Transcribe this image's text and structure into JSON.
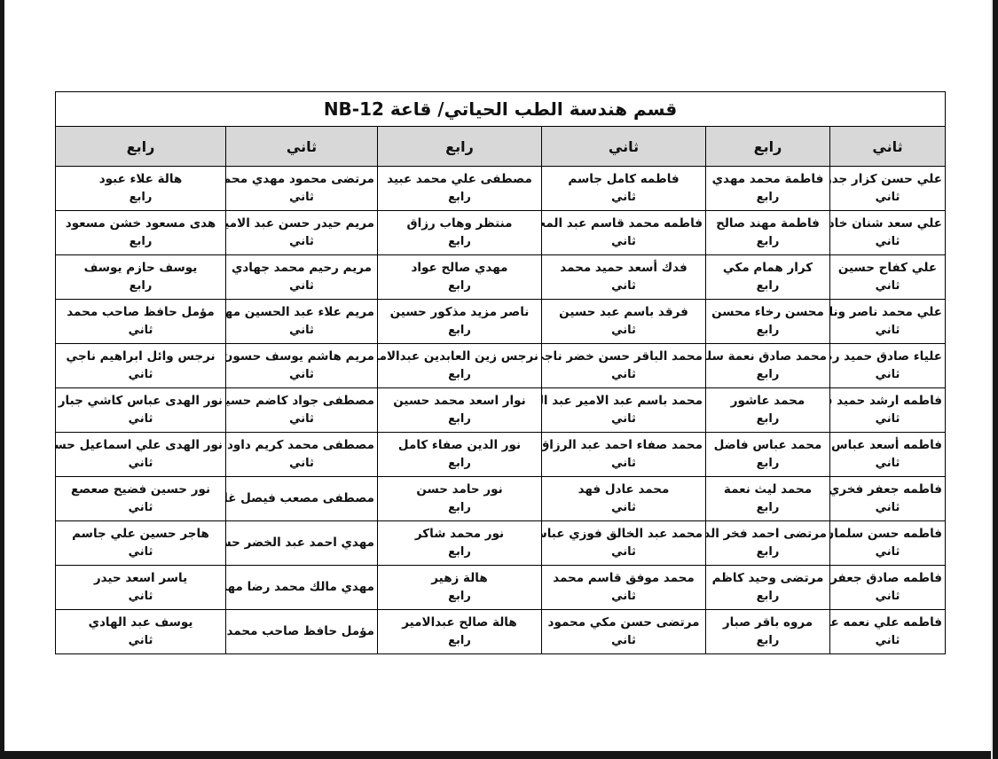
{
  "page": {
    "title": "قسم هندسة الطب الحياتي/ قاعة NB-12"
  },
  "table": {
    "column_headers": [
      "ثاني",
      "رابع",
      "ثاني",
      "رابع",
      "ثاني",
      "رابع"
    ],
    "rows": [
      [
        {
          "name": "علي حسن كزار جدوع",
          "level": "ثاني"
        },
        {
          "name": "فاطمة محمد مهدي",
          "level": "رابع"
        },
        {
          "name": "فاطمه كامل جاسم",
          "level": "ثاني"
        },
        {
          "name": "مصطفى علي محمد عبيد",
          "level": "رابع"
        },
        {
          "name": "مرتضى محمود مهدي محمد",
          "level": "ثاني"
        },
        {
          "name": "هالة علاء عبود",
          "level": "رابع"
        }
      ],
      [
        {
          "name": "علي سعد شنان خادم",
          "level": "ثاني"
        },
        {
          "name": "فاطمة مهند صالح",
          "level": "رابع"
        },
        {
          "name": "فاطمه محمد قاسم عبد المحسن",
          "level": "ثاني"
        },
        {
          "name": "منتظر وهاب رزاق",
          "level": "رابع"
        },
        {
          "name": "مريم حيدر حسن عبد الامير",
          "level": "ثاني"
        },
        {
          "name": "هدى مسعود خشن مسعود",
          "level": "رابع"
        }
      ],
      [
        {
          "name": "علي كفاح حسين",
          "level": "ثاني"
        },
        {
          "name": "كرار همام مكي",
          "level": "رابع"
        },
        {
          "name": "فدك أسعد حميد محمد",
          "level": "ثاني"
        },
        {
          "name": "مهدي صالح عواد",
          "level": "رابع"
        },
        {
          "name": "مريم رحيم محمد جهادي",
          "level": "ثاني"
        },
        {
          "name": "يوسف حازم يوسف",
          "level": "رابع"
        }
      ],
      [
        {
          "name": "علي محمد ناصر ونان",
          "level": "ثاني"
        },
        {
          "name": "محسن رخاء محسن",
          "level": "رابع"
        },
        {
          "name": "فرقد باسم عبد حسين",
          "level": "ثاني"
        },
        {
          "name": "ناصر مزيد مذكور حسين",
          "level": "رابع"
        },
        {
          "name": "مريم علاء عبد الحسين مهدي",
          "level": "ثاني"
        },
        {
          "name": "مؤمل حافظ صاحب محمد",
          "level": "ثاني"
        }
      ],
      [
        {
          "name": "علياء صادق حميد رضا",
          "level": "ثاني"
        },
        {
          "name": "محمد صادق نعمة سلمان",
          "level": "رابع"
        },
        {
          "name": "محمد الباقر حسن خضر ناجي",
          "level": "ثاني"
        },
        {
          "name": "نرجس زين العابدين عبدالامير",
          "level": "رابع"
        },
        {
          "name": "مريم هاشم يوسف حسون",
          "level": "ثاني"
        },
        {
          "name": "نرجس وائل ابراهيم ناجي",
          "level": "ثاني"
        }
      ],
      [
        {
          "name": "فاطمه ارشد حميد قدوري",
          "level": "ثاني"
        },
        {
          "name": "محمد عاشور",
          "level": "رابع"
        },
        {
          "name": "محمد باسم عبد الامير عبد الرحيم",
          "level": "ثاني"
        },
        {
          "name": "نوار اسعد محمد حسين",
          "level": "رابع"
        },
        {
          "name": "مصطفى جواد كاضم حسين",
          "level": "ثاني"
        },
        {
          "name": "نور الهدى عباس كاشي جبار",
          "level": "ثاني"
        }
      ],
      [
        {
          "name": "فاطمه أسعد عباس فخري",
          "level": "ثاني"
        },
        {
          "name": "محمد عباس فاضل",
          "level": "رابع"
        },
        {
          "name": "محمد صفاء احمد عبد الرزاق",
          "level": "ثاني"
        },
        {
          "name": "نور الدين صفاء كامل",
          "level": "رابع"
        },
        {
          "name": "مصطفى محمد كريم داود",
          "level": "ثاني"
        },
        {
          "name": "نور الهدى علي اسماعيل حسن",
          "level": "ثاني"
        }
      ],
      [
        {
          "name": "فاطمه جعفر فخري موسى",
          "level": "ثاني"
        },
        {
          "name": "محمد ليث نعمة",
          "level": "رابع"
        },
        {
          "name": "محمد عادل فهد",
          "level": "ثاني"
        },
        {
          "name": "نور حامد حسن",
          "level": "رابع"
        },
        {
          "name": "مصطفى مصعب فيصل غازي",
          "level": ""
        },
        {
          "name": "نور حسين فضيح صعصع",
          "level": "ثاني"
        }
      ],
      [
        {
          "name": "فاطمه حسن سلمان عبد",
          "level": "ثاني"
        },
        {
          "name": "مرتضى احمد فخر الدين",
          "level": "رابع"
        },
        {
          "name": "محمد عبد الخالق فوزي عباس",
          "level": "ثاني"
        },
        {
          "name": "نور محمد شاكر",
          "level": "رابع"
        },
        {
          "name": "مهدي احمد عبد الخضر حسان",
          "level": ""
        },
        {
          "name": "هاجر حسين علي جاسم",
          "level": "ثاني"
        }
      ],
      [
        {
          "name": "فاطمه صادق جعفر حسين",
          "level": "ثاني"
        },
        {
          "name": "مرتضى وحيد كاظم",
          "level": "رابع"
        },
        {
          "name": "محمد موفق قاسم محمد",
          "level": "ثاني"
        },
        {
          "name": "هالة زهير",
          "level": "رابع"
        },
        {
          "name": "مهدي مالك محمد رضا مهدي",
          "level": ""
        },
        {
          "name": "ياسر اسعد حيدر",
          "level": "ثاني"
        }
      ],
      [
        {
          "name": "فاطمه علي نعمه علوان",
          "level": "ثاني"
        },
        {
          "name": "مروه باقر صبار",
          "level": "رابع"
        },
        {
          "name": "مرتضى حسن مكي محمود",
          "level": "ثاني"
        },
        {
          "name": "هالة صالح عبدالامير",
          "level": "رابع"
        },
        {
          "name": "مؤمل حافظ صاحب محمد",
          "level": ""
        },
        {
          "name": "يوسف عبد الهادي",
          "level": "ثاني"
        }
      ]
    ]
  },
  "colors": {
    "header_bg": "#d8d8d8",
    "table_border": "#000000",
    "page_bg": "#ffffff",
    "scan_edge": "#161616"
  }
}
